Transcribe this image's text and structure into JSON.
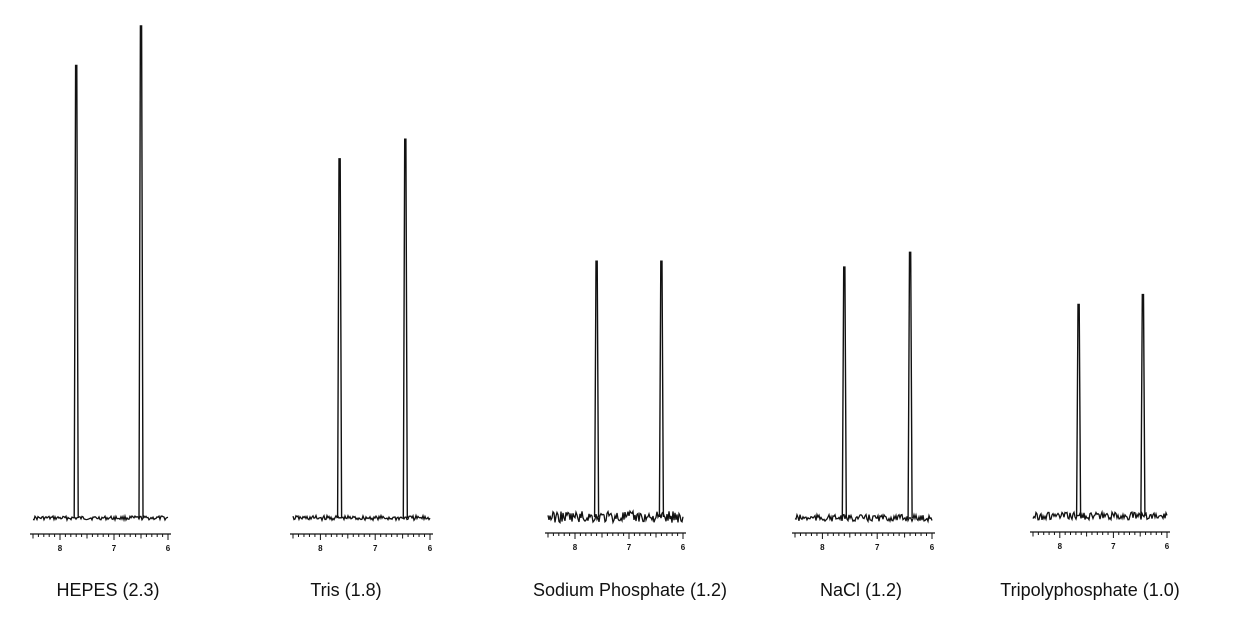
{
  "chart_data": [
    {
      "type": "line",
      "title": "",
      "caption": "HEPES (2.3)",
      "xlim": [
        8.5,
        6
      ],
      "x_ticks": [
        "8",
        "7",
        "6"
      ],
      "peaks": [
        {
          "ppm": 7.7,
          "intensity": 0.92
        },
        {
          "ppm": 6.5,
          "intensity": 1.0
        }
      ],
      "noise_level": 0.004
    },
    {
      "type": "line",
      "title": "",
      "caption": "Tris (1.8)",
      "xlim": [
        8.5,
        6
      ],
      "x_ticks": [
        "8",
        "7",
        "6"
      ],
      "peaks": [
        {
          "ppm": 7.65,
          "intensity": 0.73
        },
        {
          "ppm": 6.45,
          "intensity": 0.77
        }
      ],
      "noise_level": 0.005
    },
    {
      "type": "line",
      "title": "",
      "caption": "Sodium Phosphate (1.2)",
      "xlim": [
        8.5,
        6
      ],
      "x_ticks": [
        "8",
        "7",
        "6"
      ],
      "peaks": [
        {
          "ppm": 7.6,
          "intensity": 0.52
        },
        {
          "ppm": 6.4,
          "intensity": 0.52
        }
      ],
      "noise_level": 0.012
    },
    {
      "type": "line",
      "title": "",
      "caption": "NaCl (1.2)",
      "xlim": [
        8.5,
        6
      ],
      "x_ticks": [
        "8",
        "7",
        "6"
      ],
      "peaks": [
        {
          "ppm": 7.6,
          "intensity": 0.51
        },
        {
          "ppm": 6.4,
          "intensity": 0.54
        }
      ],
      "noise_level": 0.007
    },
    {
      "type": "line",
      "title": "",
      "caption": "Tripolyphosphate (1.0)",
      "xlim": [
        8.5,
        6
      ],
      "x_ticks": [
        "8",
        "7",
        "6"
      ],
      "peaks": [
        {
          "ppm": 7.65,
          "intensity": 0.43
        },
        {
          "ppm": 6.45,
          "intensity": 0.45
        }
      ],
      "noise_level": 0.008
    }
  ],
  "colors": {
    "trace": "#111111",
    "background": "#ffffff"
  }
}
